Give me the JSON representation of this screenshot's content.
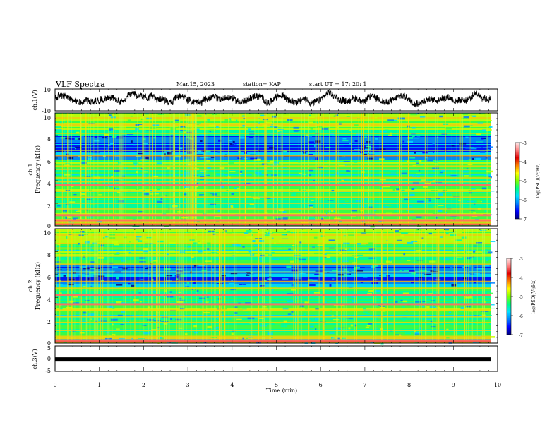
{
  "header": {
    "title": "VLF Spectra",
    "date": "Mar.15, 2023",
    "station": "station= KAP",
    "start": "start  UT =   17: 20: 1"
  },
  "colors": {
    "colormap": [
      "#000080",
      "#0000ff",
      "#0080ff",
      "#00d8ff",
      "#00ffa0",
      "#40ff40",
      "#c8ff00",
      "#ffd000",
      "#ff7000",
      "#e00000",
      "#ff9a9a",
      "#ffe4e4"
    ],
    "trace": "#000000"
  },
  "chart_data": [
    {
      "type": "line",
      "panel": "ch1-waveform",
      "ylabel": "ch.1(V)",
      "ylim": [
        -10,
        10
      ],
      "yticks": [
        "10",
        "-10"
      ],
      "x_range_min": [
        0,
        9.85
      ],
      "trace": "noisy waveform oscillating roughly between -6 and 8 V"
    },
    {
      "type": "heatmap",
      "panel": "ch1-spectrogram",
      "ylabel_top": "ch.1",
      "ylabel": "Frequency (kHz)",
      "ylim": [
        0,
        10
      ],
      "yticks": [
        "0",
        "2",
        "4",
        "6",
        "8",
        "10"
      ],
      "colorbar": {
        "label": "log(PSD)(V²/Hz)",
        "range": [
          -7,
          -3
        ],
        "ticks": [
          "-3",
          "-4",
          "-5",
          "-6",
          "-7"
        ]
      },
      "bands_khz": [
        0.25,
        0.5,
        0.95,
        1.5,
        2.0,
        2.55,
        3.05,
        3.6,
        3.9,
        4.25,
        5.0,
        5.3,
        6.2,
        6.7,
        8.2,
        9.05
      ],
      "strong_bands_khz": [
        0.5,
        0.95,
        3.6
      ],
      "quiet_region_khz": [
        6,
        8
      ]
    },
    {
      "type": "heatmap",
      "panel": "ch2-spectrogram",
      "ylabel_top": "ch.2",
      "ylabel": "Frequency (kHz)",
      "ylim": [
        0,
        10
      ],
      "yticks": [
        "0",
        "2",
        "4",
        "6",
        "8",
        "10"
      ],
      "colorbar": {
        "label": "log(PSD)(V²/Hz)",
        "range": [
          -7,
          -3
        ],
        "ticks": [
          "-3",
          "-4",
          "-5",
          "-6",
          "-7"
        ]
      },
      "bands_khz": [
        0.25,
        0.6,
        1.1,
        1.8,
        2.3,
        2.9,
        3.4,
        4.2,
        4.8,
        5.4,
        6.2,
        6.9,
        7.6,
        8.3,
        9.1
      ],
      "strong_bands_khz": [
        0.25,
        3.4,
        4.2
      ],
      "quiet_region_khz": [
        5,
        7
      ]
    },
    {
      "type": "line",
      "panel": "ch3-signal",
      "ylabel": "ch.3(V)",
      "ylim": [
        -5,
        5
      ],
      "yticks": [
        "5",
        "0",
        "-5"
      ],
      "x": [
        0,
        9.85
      ],
      "y": [
        -0.3,
        -0.3
      ],
      "trace": "flat thick line near -0.3 V"
    }
  ],
  "xaxis": {
    "label": "Time  (min)",
    "range": [
      0,
      10
    ],
    "ticks": [
      "0",
      "1",
      "2",
      "3",
      "4",
      "5",
      "6",
      "7",
      "8",
      "9",
      "10"
    ],
    "data_end_min": 9.85
  }
}
